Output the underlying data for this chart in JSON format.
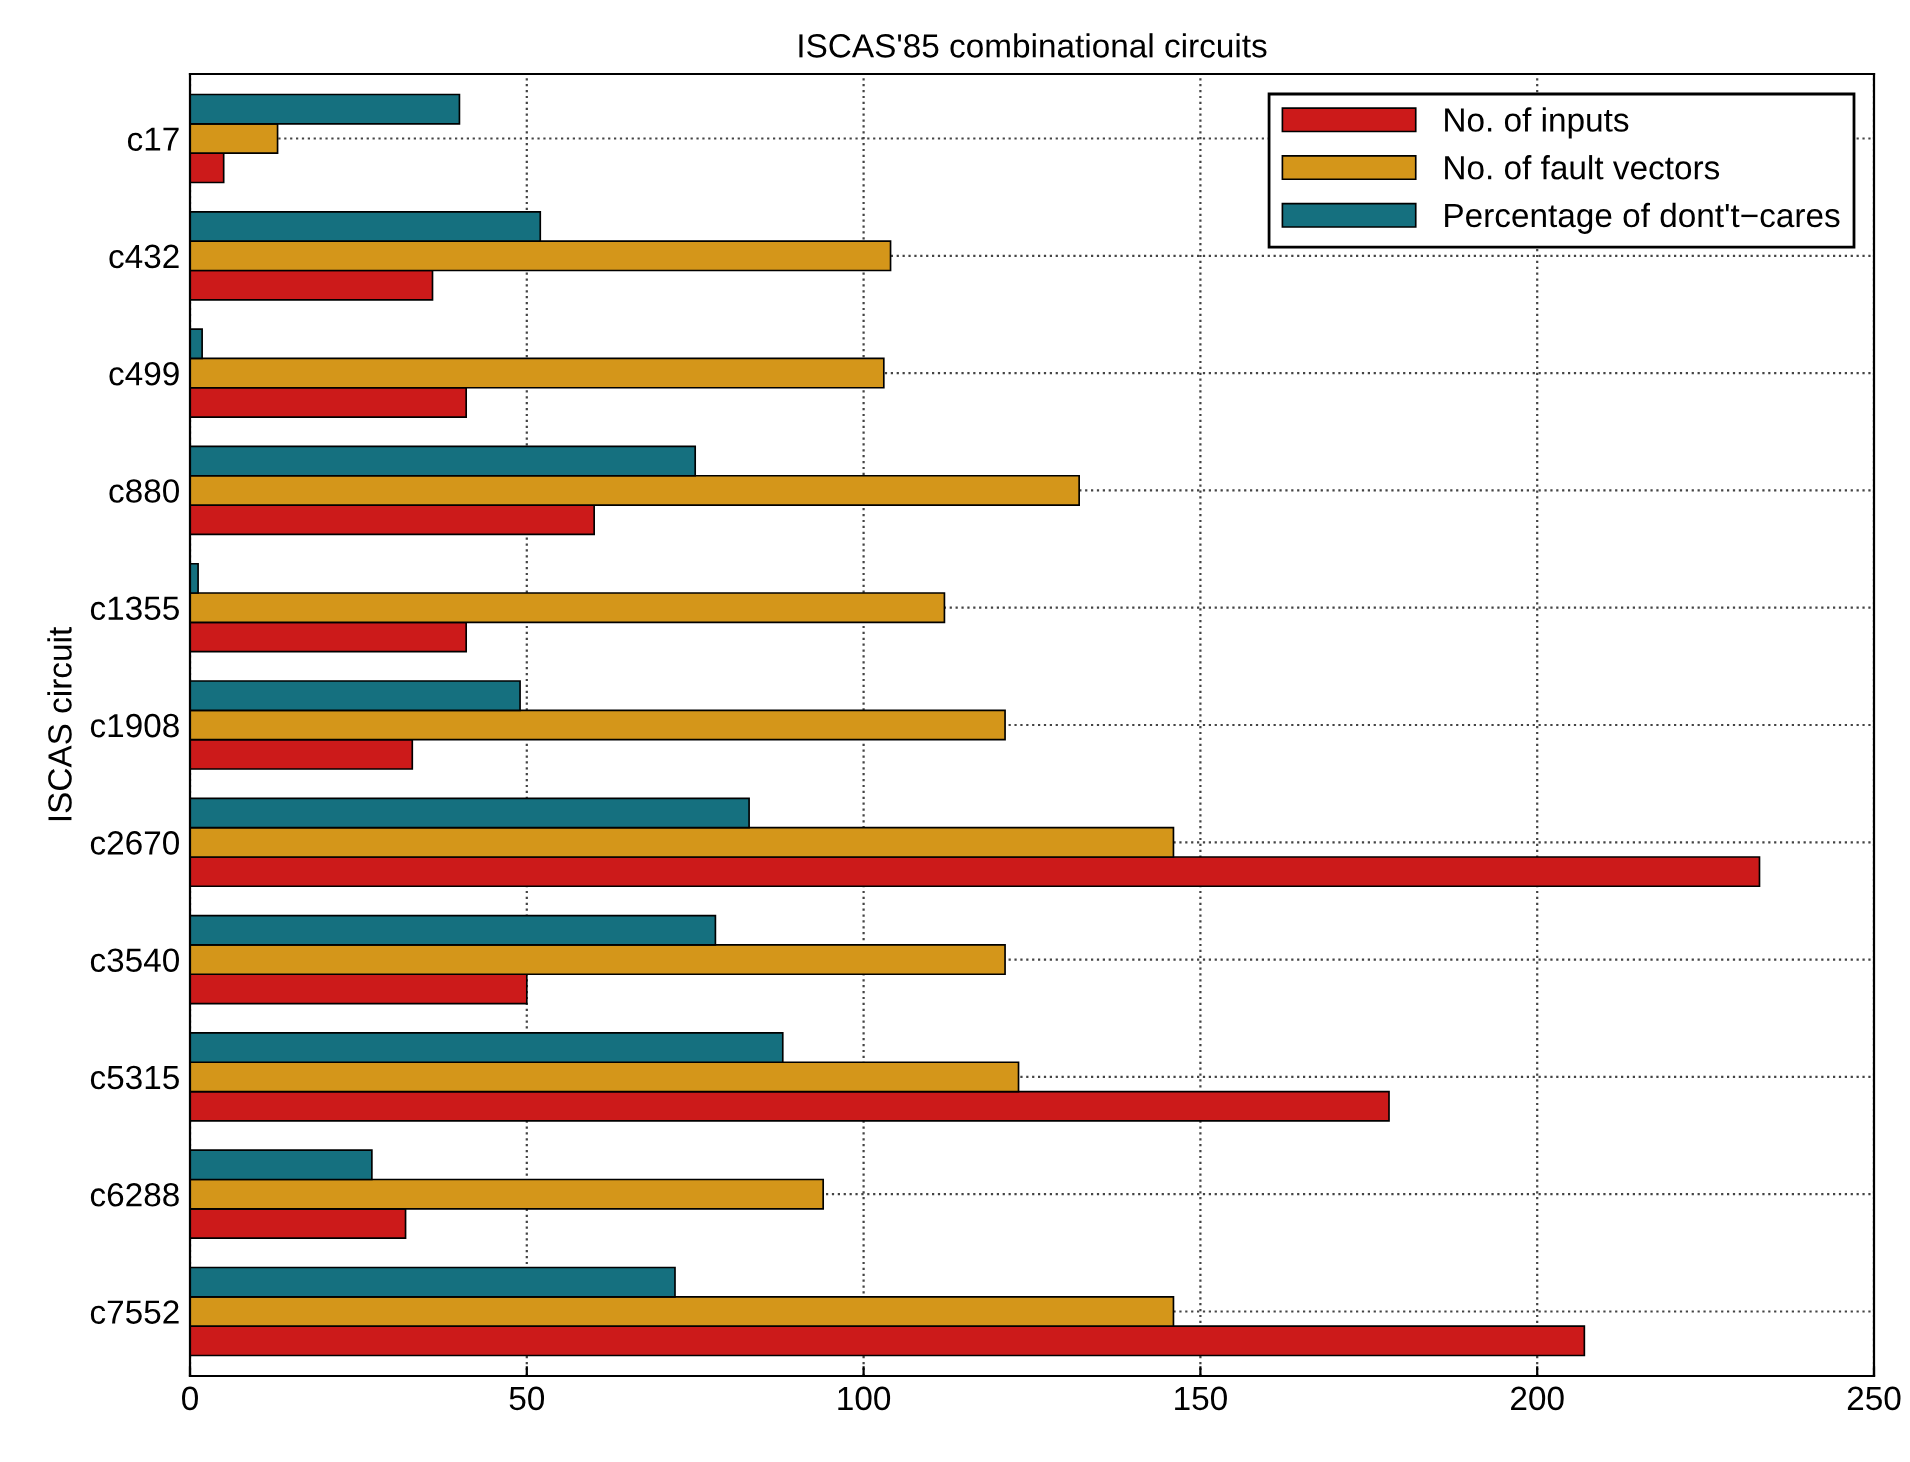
{
  "chart_data": {
    "type": "bar",
    "orientation": "horizontal",
    "title": "ISCAS'85 combinational circuits",
    "ylabel": "ISCAS circuit",
    "categories": [
      "c17",
      "c432",
      "c499",
      "c880",
      "c1355",
      "c1908",
      "c2670",
      "c3540",
      "c5315",
      "c6288",
      "c7552"
    ],
    "series": [
      {
        "name": "No. of inputs",
        "color": "#cc1a1a",
        "values": [
          5,
          36,
          41,
          60,
          41,
          33,
          233,
          50,
          178,
          32,
          207
        ]
      },
      {
        "name": "No. of fault vectors",
        "color": "#d4961a",
        "values": [
          13,
          104,
          103,
          132,
          112,
          121,
          146,
          121,
          123,
          94,
          146
        ]
      },
      {
        "name": "Percentage of dont't−cares",
        "color": "#15707f",
        "values": [
          40,
          52,
          1.8,
          75,
          1.2,
          49,
          83,
          78,
          88,
          27,
          72
        ]
      }
    ],
    "xlim": [
      0,
      250
    ],
    "xticks": [
      0,
      50,
      100,
      150,
      200,
      250
    ],
    "grid": true,
    "legend": "top right"
  }
}
